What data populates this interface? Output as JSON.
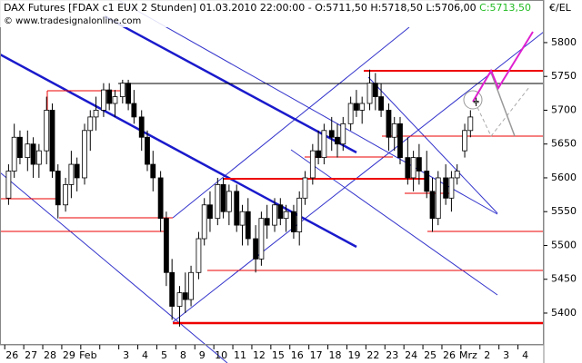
{
  "header": {
    "title": "DAX Futures [FDAX c1 EUX  2 Stunden] 01.03.2010 22:00:00 - O:5711,50 H:5718,50 L:5706,00",
    "last": "C:5713,50",
    "copyright": "© www.tradesignalonline.com",
    "unit": "€/EL"
  },
  "chart_data": {
    "type": "candlestick",
    "categories": [
      "26",
      "27",
      "28",
      "29",
      "Feb",
      null,
      "3",
      "4",
      "5",
      "8",
      "9",
      "10",
      "11",
      "12",
      "15",
      "16",
      "17",
      "18",
      "19",
      "22",
      "23",
      "24",
      "25",
      "26",
      "Mrz",
      "2",
      "3",
      "4"
    ],
    "xlim": [
      -0.25,
      28.36
    ],
    "ylim": [
      5353,
      5863
    ],
    "yticks": [
      5400,
      5450,
      5500,
      5550,
      5600,
      5650,
      5700,
      5750,
      5800
    ],
    "x": [
      0.2,
      0.5,
      0.8,
      1.2,
      1.5,
      1.8,
      2.2,
      2.5,
      2.8,
      3.2,
      3.5,
      3.8,
      4.2,
      4.5,
      4.8,
      5.2,
      5.5,
      5.8,
      6.2,
      6.5,
      6.8,
      7.2,
      7.5,
      7.8,
      8.2,
      8.5,
      8.8,
      9.2,
      9.5,
      9.8,
      10.2,
      10.5,
      10.8,
      11.2,
      11.5,
      11.8,
      12.2,
      12.5,
      12.8,
      13.2,
      13.5,
      13.8,
      14.2,
      14.5,
      14.8,
      15.2,
      15.5,
      15.8,
      16.2,
      16.5,
      16.8,
      17.2,
      17.5,
      17.8,
      18.2,
      18.5,
      18.8,
      19.2,
      19.5,
      19.8,
      20.2,
      20.5,
      20.8,
      21.2,
      21.5,
      21.8,
      22.2,
      22.5,
      22.8,
      23.2,
      23.5,
      23.8,
      24.2,
      24.5,
      24.8
    ],
    "open": [
      5570,
      5610,
      5660,
      5630,
      5650,
      5620,
      5640,
      5700,
      5610,
      5560,
      5590,
      5620,
      5600,
      5670,
      5690,
      5700,
      5730,
      5710,
      5720,
      5740,
      5710,
      5690,
      5660,
      5620,
      5600,
      5540,
      5460,
      5410,
      5430,
      5420,
      5460,
      5510,
      5560,
      5540,
      5590,
      5550,
      5580,
      5530,
      5550,
      5510,
      5480,
      5540,
      5530,
      5560,
      5540,
      5550,
      5520,
      5570,
      5600,
      5640,
      5630,
      5670,
      5660,
      5650,
      5680,
      5710,
      5700,
      5710,
      5740,
      5720,
      5700,
      5660,
      5680,
      5630,
      5600,
      5630,
      5610,
      5580,
      5540,
      5600,
      5570,
      5600,
      5640,
      5670,
      5711.5
    ],
    "high": [
      5620,
      5680,
      5670,
      5670,
      5660,
      5650,
      5720,
      5710,
      5620,
      5600,
      5640,
      5630,
      5680,
      5700,
      5720,
      5740,
      5740,
      5730,
      5745,
      5745,
      5730,
      5700,
      5670,
      5640,
      5610,
      5550,
      5480,
      5440,
      5460,
      5470,
      5520,
      5570,
      5580,
      5600,
      5600,
      5590,
      5590,
      5560,
      5570,
      5530,
      5550,
      5560,
      5570,
      5570,
      5560,
      5560,
      5580,
      5610,
      5650,
      5670,
      5680,
      5690,
      5680,
      5690,
      5720,
      5730,
      5720,
      5760,
      5755,
      5740,
      5710,
      5690,
      5690,
      5660,
      5640,
      5650,
      5640,
      5600,
      5610,
      5620,
      5610,
      5620,
      5680,
      5700,
      5718.5
    ],
    "low": [
      5560,
      5600,
      5620,
      5610,
      5600,
      5600,
      5620,
      5600,
      5540,
      5550,
      5570,
      5580,
      5590,
      5640,
      5670,
      5690,
      5700,
      5690,
      5710,
      5700,
      5680,
      5640,
      5610,
      5580,
      5520,
      5440,
      5390,
      5380,
      5400,
      5410,
      5450,
      5500,
      5520,
      5530,
      5540,
      5530,
      5520,
      5500,
      5500,
      5460,
      5470,
      5510,
      5520,
      5530,
      5520,
      5510,
      5500,
      5560,
      5590,
      5620,
      5620,
      5640,
      5630,
      5640,
      5670,
      5690,
      5680,
      5700,
      5700,
      5690,
      5640,
      5640,
      5620,
      5590,
      5580,
      5590,
      5570,
      5520,
      5530,
      5560,
      5550,
      5590,
      5630,
      5660,
      5706
    ],
    "close": [
      5610,
      5660,
      5630,
      5650,
      5620,
      5640,
      5700,
      5610,
      5560,
      5590,
      5620,
      5600,
      5670,
      5690,
      5700,
      5730,
      5710,
      5720,
      5740,
      5710,
      5690,
      5660,
      5620,
      5600,
      5540,
      5460,
      5410,
      5430,
      5420,
      5460,
      5510,
      5560,
      5540,
      5590,
      5550,
      5580,
      5530,
      5550,
      5510,
      5480,
      5540,
      5530,
      5560,
      5540,
      5550,
      5520,
      5570,
      5600,
      5640,
      5630,
      5670,
      5660,
      5650,
      5680,
      5710,
      5700,
      5710,
      5740,
      5720,
      5700,
      5660,
      5680,
      5630,
      5600,
      5630,
      5610,
      5580,
      5540,
      5600,
      5570,
      5600,
      5610,
      5670,
      5690,
      5713.5
    ],
    "up_color": "#ffffff",
    "down_color": "#000000"
  }
}
